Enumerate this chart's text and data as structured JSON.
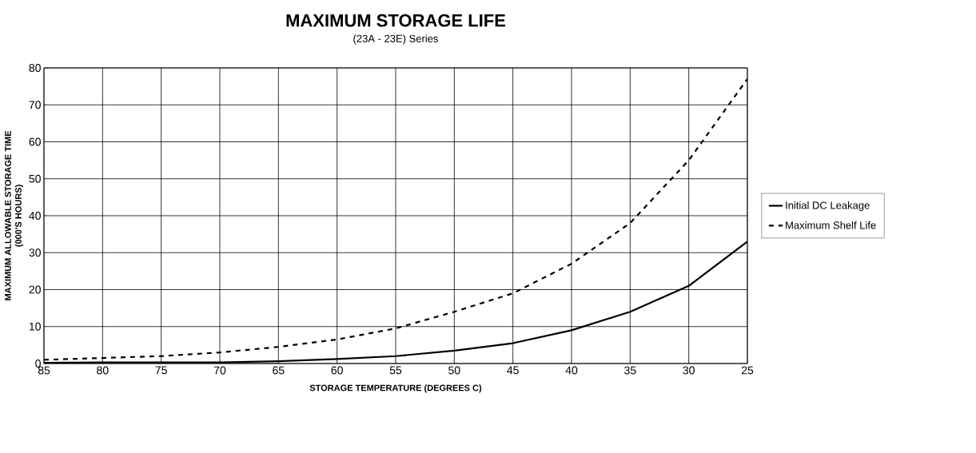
{
  "chart_data": {
    "type": "line",
    "title": "MAXIMUM STORAGE LIFE",
    "subtitle": "(23A - 23E) Series",
    "xlabel": "STORAGE TEMPERATURE (DEGREES C)",
    "ylabel": "MAXIMUM ALLOWABLE STORAGE TIME\n(000'S HOURS)",
    "x": [
      85,
      80,
      75,
      70,
      65,
      60,
      55,
      50,
      45,
      40,
      35,
      30,
      25
    ],
    "series": [
      {
        "name": "Initial DC Leakage",
        "color": "#000000",
        "line_style": "solid",
        "values": [
          0.2,
          0.3,
          0.3,
          0.3,
          0.6,
          1.2,
          2,
          3.5,
          5.5,
          9,
          14,
          21,
          33
        ]
      },
      {
        "name": "Maximum Shelf Life",
        "color": "#000000",
        "line_style": "dashed",
        "values": [
          1,
          1.5,
          2,
          3,
          4.5,
          6.5,
          9.5,
          14,
          19,
          27,
          38,
          55,
          77
        ]
      }
    ],
    "xlim": [
      85,
      25
    ],
    "xticks": [
      85,
      80,
      75,
      70,
      65,
      60,
      55,
      50,
      45,
      40,
      35,
      30,
      25
    ],
    "ylim": [
      0,
      80
    ],
    "yticks": [
      0,
      10,
      20,
      30,
      40,
      50,
      60,
      70,
      80
    ],
    "grid": true,
    "legend": "right"
  }
}
